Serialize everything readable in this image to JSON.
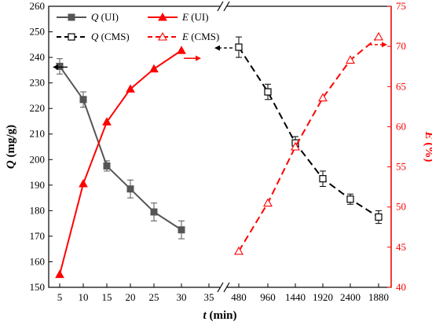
{
  "chart_data": {
    "type": "line",
    "x_ticks": [
      "5",
      "10",
      "15",
      "20",
      "25",
      "30",
      "35",
      "480",
      "960",
      "1440",
      "1920",
      "2400",
      "1880"
    ],
    "x_axis_break_after_tick": "35",
    "xlabel_var": "t",
    "xlabel_unit": " (min)",
    "ylabel_left_var": "Q",
    "ylabel_left_unit": " (mg/g)",
    "ylabel_right_var": "E",
    "ylabel_right_unit": " (%)",
    "ylim_left": [
      150,
      260
    ],
    "ylim_right": [
      40,
      75
    ],
    "yticks_left": [
      150,
      160,
      170,
      180,
      190,
      200,
      210,
      220,
      230,
      240,
      250,
      260
    ],
    "yticks_right": [
      40,
      45,
      50,
      55,
      60,
      65,
      70,
      75
    ],
    "grid": false,
    "legend_position": "top-left",
    "colors": {
      "left_axis": "#000000",
      "right_axis": "#ff0000",
      "q_series": "#555555",
      "e_series": "#ff0000",
      "cms_q_series": "#000000"
    },
    "series": [
      {
        "name": "Q (UI)",
        "name_var": "Q",
        "name_suffix": " (UI)",
        "axis": "left",
        "style": "solid",
        "marker": "filled-square",
        "color": "#555555",
        "x": [
          "5",
          "10",
          "15",
          "20",
          "25",
          "30"
        ],
        "y": [
          236.5,
          223.5,
          197.5,
          188.5,
          179.5,
          172.5
        ],
        "error": [
          3,
          3,
          2,
          3.5,
          3.5,
          3.5
        ]
      },
      {
        "name": "E (UI)",
        "name_var": "E",
        "name_suffix": " (UI)",
        "axis": "right",
        "style": "solid",
        "marker": "filled-triangle",
        "color": "#ff0000",
        "x": [
          "5",
          "10",
          "15",
          "20",
          "25",
          "30"
        ],
        "y": [
          41.6,
          52.9,
          60.6,
          64.7,
          67.2,
          69.5
        ]
      },
      {
        "name": "Q (CMS)",
        "name_var": "Q",
        "name_suffix": " (CMS)",
        "axis": "left",
        "style": "dashed",
        "marker": "open-square",
        "color": "#000000",
        "x": [
          "480",
          "960",
          "1440",
          "1920",
          "2400",
          "1880"
        ],
        "y": [
          244,
          226.5,
          206.5,
          192.5,
          184.5,
          177.5
        ],
        "error": [
          4,
          3,
          2.5,
          3,
          2,
          2.5
        ]
      },
      {
        "name": "E (CMS)",
        "name_var": "E",
        "name_suffix": " (CMS)",
        "axis": "right",
        "style": "dashed",
        "marker": "open-triangle",
        "color": "#ff0000",
        "x": [
          "480",
          "960",
          "1440",
          "1920",
          "2400",
          "1880"
        ],
        "y": [
          44.5,
          50.5,
          57.5,
          63.6,
          68.3,
          71.2
        ]
      }
    ],
    "annotations": [
      {
        "type": "arrow",
        "direction": "left",
        "series": "Q (UI)",
        "style": "solid"
      },
      {
        "type": "arrow",
        "direction": "right",
        "series": "E (UI)",
        "style": "solid"
      },
      {
        "type": "arrow",
        "direction": "left",
        "series": "Q (CMS)",
        "style": "dashed"
      },
      {
        "type": "arrow",
        "direction": "right",
        "series": "E (CMS)",
        "style": "dashed"
      }
    ]
  }
}
